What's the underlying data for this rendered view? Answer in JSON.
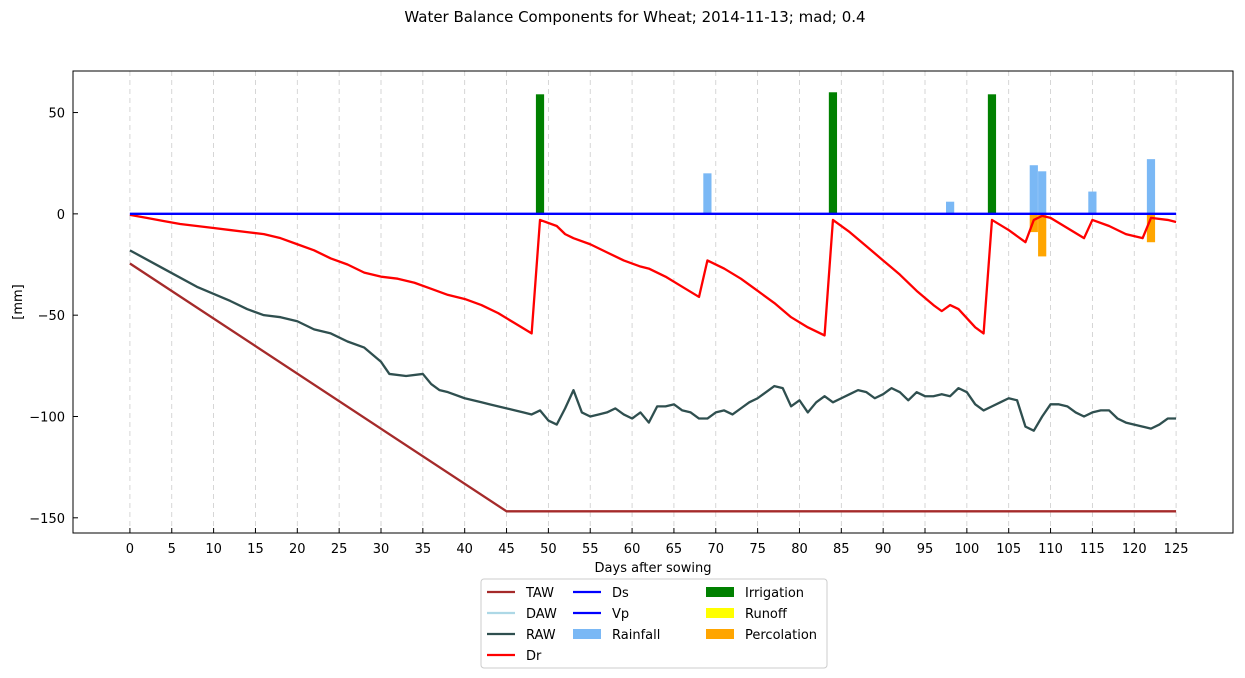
{
  "chart_data": {
    "type": "line",
    "title": "Water Balance Components for Wheat; 2014-11-13; mad; 0.4",
    "xlabel": "Days after sowing",
    "ylabel": "[mm]",
    "xlim": [
      -6.8,
      131.8
    ],
    "ylim": [
      -157.5,
      70.5
    ],
    "xticks": [
      0,
      5,
      10,
      15,
      20,
      25,
      30,
      35,
      40,
      45,
      50,
      55,
      60,
      65,
      70,
      75,
      80,
      85,
      90,
      95,
      100,
      105,
      110,
      115,
      120,
      125
    ],
    "yticks": [
      50,
      0,
      -50,
      -100,
      -150
    ],
    "ytick_labels": [
      "50",
      "0",
      "−50",
      "−100",
      "−150"
    ],
    "grid": "vertical dashed at x ticks",
    "legend": {
      "position": "below plot, centered",
      "columns": [
        [
          "TAW",
          "DAW",
          "RAW",
          "Dr"
        ],
        [
          "Ds",
          "Vp",
          "Rainfall"
        ],
        [
          "Irrigation",
          "Runoff",
          "Percolation"
        ]
      ]
    },
    "colors": {
      "TAW": "#a52a2a",
      "DAW": "#add8e6",
      "RAW": "#2f4f4f",
      "Dr": "#ff0000",
      "Ds": "#0000ff",
      "Vp": "#0000ff",
      "Rainfall": "#7ab8f5",
      "Irrigation": "#008000",
      "Runoff": "#ffff00",
      "Percolation": "#ffa500"
    },
    "series": [
      {
        "name": "TAW",
        "type": "line",
        "x": [
          0,
          45,
          125
        ],
        "y": [
          -24.5,
          -146.8,
          -146.8
        ]
      },
      {
        "name": "RAW",
        "type": "line",
        "x": [
          0,
          4,
          8,
          12,
          14,
          16,
          18,
          20,
          22,
          24,
          26,
          28,
          30,
          31,
          33,
          35,
          36,
          37,
          38,
          40,
          42,
          43,
          45,
          46,
          47,
          48,
          49,
          50,
          51,
          52,
          53,
          54,
          55,
          56,
          57,
          58,
          59,
          60,
          61,
          62,
          63,
          64,
          65,
          66,
          67,
          68,
          69,
          70,
          71,
          72,
          73,
          74,
          75,
          76,
          77,
          78,
          79,
          80,
          81,
          82,
          83,
          84,
          85,
          86,
          87,
          88,
          89,
          90,
          91,
          92,
          93,
          94,
          95,
          96,
          97,
          98,
          99,
          100,
          101,
          102,
          103,
          104,
          105,
          106,
          107,
          108,
          109,
          110,
          111,
          112,
          113,
          114,
          115,
          116,
          117,
          118,
          119,
          120,
          121,
          122,
          123,
          124,
          125
        ],
        "y": [
          -18,
          -27,
          -36,
          -43,
          -47,
          -50,
          -51,
          -53,
          -57,
          -59,
          -63,
          -66,
          -73,
          -79,
          -80,
          -79,
          -84,
          -87,
          -88,
          -91,
          -93,
          -94,
          -96,
          -97,
          -98,
          -99,
          -97,
          -102,
          -104,
          -96,
          -87,
          -98,
          -100,
          -99,
          -98,
          -96,
          -99,
          -101,
          -98,
          -103,
          -95,
          -95,
          -94,
          -97,
          -98,
          -101,
          -101,
          -98,
          -97,
          -99,
          -96,
          -93,
          -91,
          -88,
          -85,
          -86,
          -95,
          -92,
          -98,
          -93,
          -90,
          -93,
          -91,
          -89,
          -87,
          -88,
          -91,
          -89,
          -86,
          -88,
          -92,
          -88,
          -90,
          -90,
          -89,
          -90,
          -86,
          -88,
          -94,
          -97,
          -95,
          -93,
          -91,
          -92,
          -105,
          -107,
          -100,
          -94,
          -94,
          -95,
          -98,
          -100,
          -98,
          -97,
          -97,
          -101,
          -103,
          -104,
          -105,
          -106,
          -104,
          -101,
          -101
        ]
      },
      {
        "name": "Dr",
        "type": "line",
        "x": [
          0,
          2,
          4,
          6,
          8,
          10,
          12,
          14,
          16,
          18,
          20,
          22,
          24,
          26,
          28,
          30,
          32,
          34,
          36,
          38,
          40,
          42,
          44,
          46,
          48,
          49,
          51,
          52,
          53,
          55,
          57,
          59,
          61,
          62,
          64,
          66,
          68,
          69,
          71,
          73,
          75,
          77,
          79,
          81,
          83,
          84,
          86,
          88,
          90,
          92,
          94,
          96,
          97,
          98,
          99,
          101,
          102,
          103,
          105,
          107,
          108,
          109,
          110,
          112,
          114,
          115,
          117,
          119,
          121,
          122,
          124,
          125
        ],
        "y": [
          -0.5,
          -2,
          -3.5,
          -5,
          -6,
          -7,
          -8,
          -9,
          -10,
          -12,
          -15,
          -18,
          -22,
          -25,
          -29,
          -31,
          -32,
          -34,
          -37,
          -40,
          -42,
          -45,
          -49,
          -54,
          -59,
          -3,
          -6,
          -10,
          -12,
          -15,
          -19,
          -23,
          -26,
          -27,
          -31,
          -36,
          -41,
          -23,
          -27,
          -32,
          -38,
          -44,
          -51,
          -56,
          -60,
          -3,
          -9,
          -16,
          -23,
          -30,
          -38,
          -45,
          -48,
          -45,
          -47,
          -56,
          -59,
          -3,
          -8,
          -14,
          -3,
          -1,
          -2,
          -7,
          -12,
          -3,
          -6,
          -10,
          -12,
          -2,
          -3,
          -4
        ]
      },
      {
        "name": "Ds",
        "type": "line",
        "x": [
          0,
          125
        ],
        "y": [
          0,
          0
        ]
      },
      {
        "name": "Vp",
        "type": "line",
        "x": [
          0,
          125
        ],
        "y": [
          0,
          0
        ]
      },
      {
        "name": "Irrigation",
        "type": "bar",
        "x": [
          49,
          84,
          103
        ],
        "y": [
          59,
          60,
          59
        ]
      },
      {
        "name": "Rainfall",
        "type": "bar",
        "x": [
          69,
          98,
          108,
          109,
          115,
          122
        ],
        "y": [
          20,
          6,
          24,
          21,
          11,
          27
        ]
      },
      {
        "name": "Percolation",
        "type": "bar",
        "x": [
          108,
          109,
          122
        ],
        "y": [
          -9,
          -21,
          -14
        ]
      }
    ]
  }
}
